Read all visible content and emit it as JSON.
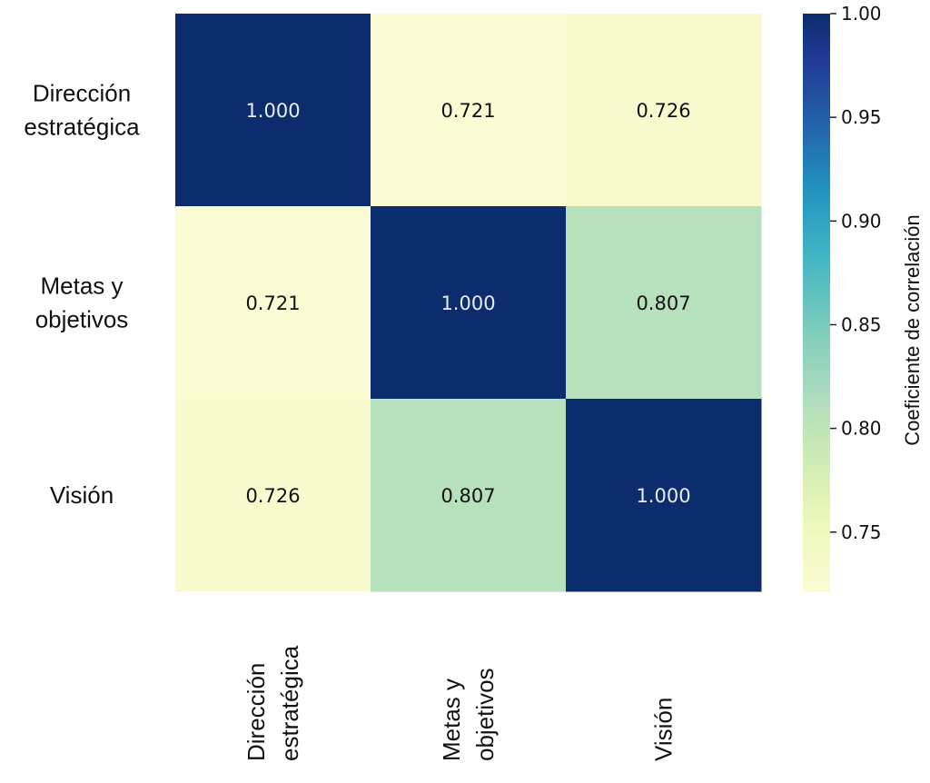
{
  "chart_data": {
    "type": "heatmap",
    "row_labels": [
      [
        "Dirección",
        "estratégica"
      ],
      [
        "Metas y",
        "objetivos"
      ],
      [
        "Visión"
      ]
    ],
    "col_labels": [
      [
        "Dirección",
        "estratégica"
      ],
      [
        "Metas y",
        "objetivos"
      ],
      [
        "Visión"
      ]
    ],
    "values": [
      [
        1.0,
        0.721,
        0.726
      ],
      [
        0.721,
        1.0,
        0.807
      ],
      [
        0.726,
        0.807,
        1.0
      ]
    ],
    "cell_text": [
      [
        "1.000",
        "0.721",
        "0.726"
      ],
      [
        "0.721",
        "1.000",
        "0.807"
      ],
      [
        "0.726",
        "0.807",
        "1.000"
      ]
    ],
    "colorbar": {
      "label": "Coeficiente de correlación",
      "vmin": 0.721,
      "vmax": 1.0,
      "ticks": [
        1.0,
        0.95,
        0.9,
        0.85,
        0.8,
        0.75
      ],
      "tick_labels": [
        "1.00",
        "0.95",
        "0.90",
        "0.85",
        "0.80",
        "0.75"
      ],
      "colormap": "YlGnBu"
    },
    "legend_position": "right",
    "grid": false
  },
  "colors": {
    "low": "#fbfcd3",
    "mid": "#b1ddbf",
    "high": "#0c2c6e",
    "text_dark": "#111111",
    "text_light": "#e8eef8"
  }
}
